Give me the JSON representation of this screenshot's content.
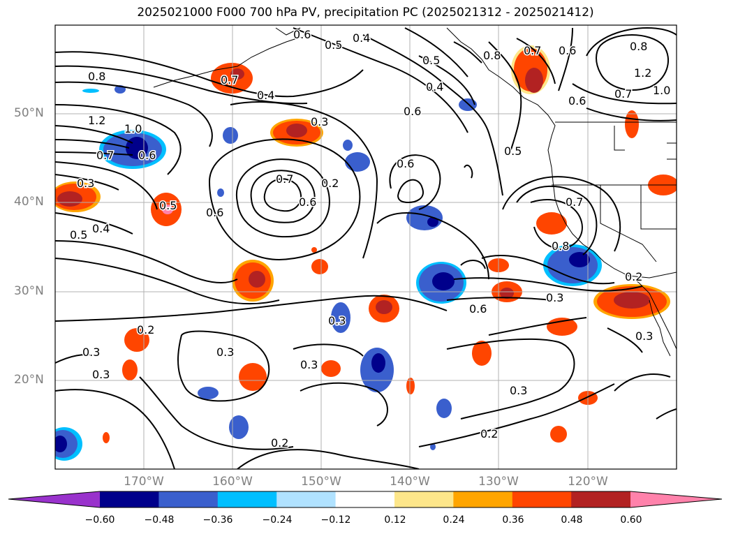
{
  "title": "2025021000 F000 700 hPa PV, precipitation PC (2025021312 - 2025021412)",
  "lat_labels": [
    "50°N",
    "40°N",
    "30°N",
    "20°N"
  ],
  "lon_labels": [
    "170°W",
    "160°W",
    "150°W",
    "140°W",
    "130°W",
    "120°W"
  ],
  "colorbar": {
    "colors": [
      "#9932cc",
      "#00008b",
      "#3a5fcd",
      "#00bfff",
      "#b0e2ff",
      "#ffffff",
      "#fde68a",
      "#ffa500",
      "#ff4500",
      "#b22222",
      "#ff82ab"
    ],
    "ticks": [
      "−0.60",
      "−0.48",
      "−0.36",
      "−0.24",
      "−0.12",
      "0.12",
      "0.24",
      "0.36",
      "0.48",
      "0.60"
    ]
  },
  "contour_labels": [
    "0.6",
    "0.5",
    "0.4",
    "0.5",
    "0.8",
    "0.7",
    "0.6",
    "0.8",
    "1.2",
    "1.0",
    "0.7",
    "0.8",
    "0.7",
    "0.4",
    "0.4",
    "0.6",
    "1.2",
    "1.0",
    "0.3",
    "0.6",
    "0.7",
    "0.6",
    "0.5",
    "0.6",
    "0.7",
    "0.2",
    "0.6",
    "0.3",
    "0.5",
    "0.6",
    "0.7",
    "0.4",
    "0.5",
    "0.8",
    "0.3",
    "0.6",
    "0.2",
    "0.2",
    "0.3",
    "0.3",
    "0.3",
    "0.3",
    "0.2",
    "0.2",
    "0.3",
    "0.3",
    "0.3"
  ]
}
